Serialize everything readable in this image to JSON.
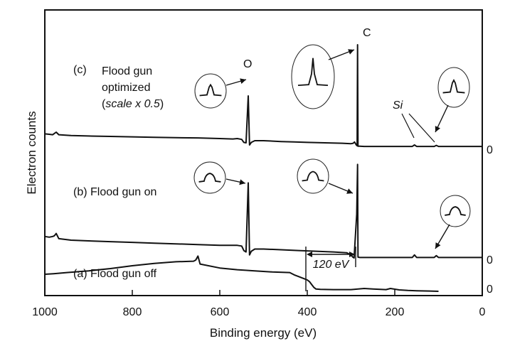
{
  "chart_data": {
    "type": "line",
    "xlabel": "Binding energy (eV)",
    "ylabel": "Electron counts",
    "xlim": [
      1000,
      0
    ],
    "x_reversed": true,
    "x_ticks": [
      1000,
      800,
      600,
      400,
      200,
      0
    ],
    "y_ticks_per_series": "0",
    "series": [
      {
        "name": "(c) Flood gun optimized (scale x 0.5)",
        "label_parts": {
          "prefix": "(c)",
          "line1": "Flood gun",
          "line2": "optimized",
          "scale_open": "(",
          "scale_text": "scale x 0.5",
          "scale_close": ")"
        },
        "baseline_label": "0",
        "points": [
          [
            1000,
            62
          ],
          [
            990,
            60
          ],
          [
            982,
            58
          ],
          [
            978,
            64
          ],
          [
            974,
            70
          ],
          [
            968,
            58
          ],
          [
            940,
            54
          ],
          [
            900,
            52
          ],
          [
            850,
            50
          ],
          [
            800,
            48
          ],
          [
            750,
            46
          ],
          [
            700,
            44
          ],
          [
            650,
            43
          ],
          [
            600,
            40
          ],
          [
            570,
            38
          ],
          [
            560,
            40
          ],
          [
            550,
            36
          ],
          [
            545,
            22
          ],
          [
            540,
            20
          ],
          [
            535,
            240
          ],
          [
            532,
            10
          ],
          [
            528,
            22
          ],
          [
            520,
            30
          ],
          [
            500,
            30
          ],
          [
            460,
            26
          ],
          [
            430,
            24
          ],
          [
            400,
            22
          ],
          [
            360,
            20
          ],
          [
            320,
            18
          ],
          [
            300,
            16
          ],
          [
            295,
            18
          ],
          [
            292,
            24
          ],
          [
            288,
            10
          ],
          [
            286,
            6
          ],
          [
            285,
            480
          ],
          [
            284,
            4
          ],
          [
            280,
            4
          ],
          [
            270,
            3
          ],
          [
            250,
            3
          ],
          [
            200,
            3
          ],
          [
            160,
            3
          ],
          [
            155,
            10
          ],
          [
            150,
            3
          ],
          [
            110,
            3
          ],
          [
            105,
            8
          ],
          [
            100,
            3
          ],
          [
            50,
            3
          ],
          [
            0,
            3
          ]
        ]
      },
      {
        "name": "(b) Flood gun on",
        "label_parts": {
          "prefix": "(b)",
          "text": "Flood gun on"
        },
        "baseline_label": "0",
        "points": [
          [
            1000,
            60
          ],
          [
            990,
            58
          ],
          [
            982,
            60
          ],
          [
            978,
            62
          ],
          [
            974,
            68
          ],
          [
            968,
            54
          ],
          [
            940,
            50
          ],
          [
            900,
            48
          ],
          [
            850,
            46
          ],
          [
            800,
            44
          ],
          [
            750,
            42
          ],
          [
            700,
            40
          ],
          [
            650,
            38
          ],
          [
            600,
            36
          ],
          [
            560,
            36
          ],
          [
            550,
            34
          ],
          [
            545,
            22
          ],
          [
            540,
            18
          ],
          [
            535,
            205
          ],
          [
            532,
            10
          ],
          [
            528,
            20
          ],
          [
            520,
            26
          ],
          [
            500,
            26
          ],
          [
            460,
            24
          ],
          [
            420,
            22
          ],
          [
            380,
            20
          ],
          [
            340,
            18
          ],
          [
            310,
            16
          ],
          [
            300,
            10
          ],
          [
            296,
            4
          ],
          [
            293,
            2
          ],
          [
            290,
            60
          ],
          [
            287,
            120
          ],
          [
            285,
            255
          ],
          [
            284,
            4
          ],
          [
            280,
            3
          ],
          [
            250,
            3
          ],
          [
            200,
            3
          ],
          [
            160,
            3
          ],
          [
            155,
            10
          ],
          [
            150,
            3
          ],
          [
            110,
            3
          ],
          [
            105,
            8
          ],
          [
            100,
            3
          ],
          [
            50,
            3
          ],
          [
            0,
            3
          ]
        ]
      },
      {
        "name": "(a) Flood gun off",
        "label_parts": {
          "prefix": "(a)",
          "text": "Flood gun off"
        },
        "baseline_label": "0",
        "points": [
          [
            1000,
            60
          ],
          [
            980,
            62
          ],
          [
            950,
            66
          ],
          [
            900,
            72
          ],
          [
            850,
            80
          ],
          [
            800,
            90
          ],
          [
            750,
            98
          ],
          [
            700,
            104
          ],
          [
            660,
            106
          ],
          [
            655,
            110
          ],
          [
            650,
            124
          ],
          [
            645,
            96
          ],
          [
            600,
            82
          ],
          [
            560,
            76
          ],
          [
            520,
            72
          ],
          [
            480,
            68
          ],
          [
            440,
            66
          ],
          [
            430,
            58
          ],
          [
            420,
            52
          ],
          [
            410,
            46
          ],
          [
            400,
            40
          ],
          [
            395,
            34
          ],
          [
            390,
            24
          ],
          [
            385,
            14
          ],
          [
            380,
            8
          ],
          [
            370,
            7
          ],
          [
            340,
            6
          ],
          [
            300,
            6
          ],
          [
            270,
            10
          ],
          [
            250,
            8
          ],
          [
            220,
            6
          ],
          [
            210,
            10
          ],
          [
            190,
            5
          ],
          [
            170,
            3
          ],
          [
            150,
            2
          ],
          [
            120,
            1
          ],
          [
            100,
            0
          ]
        ]
      }
    ],
    "insets": [
      {
        "shape": "single-peak",
        "series": "c",
        "near": "O"
      },
      {
        "shape": "tall-peak",
        "series": "c",
        "near": "C"
      },
      {
        "shape": "single-peak",
        "series": "c",
        "near": "Si"
      },
      {
        "shape": "broad-peak",
        "series": "b",
        "near": "O"
      },
      {
        "shape": "broad-peak",
        "series": "b",
        "near": "C"
      },
      {
        "shape": "broad-peak",
        "series": "b",
        "near": "Si"
      }
    ],
    "annotations": {
      "peak_O": "O",
      "peak_C": "C",
      "peak_Si": "Si",
      "shift": "120 eV"
    }
  }
}
